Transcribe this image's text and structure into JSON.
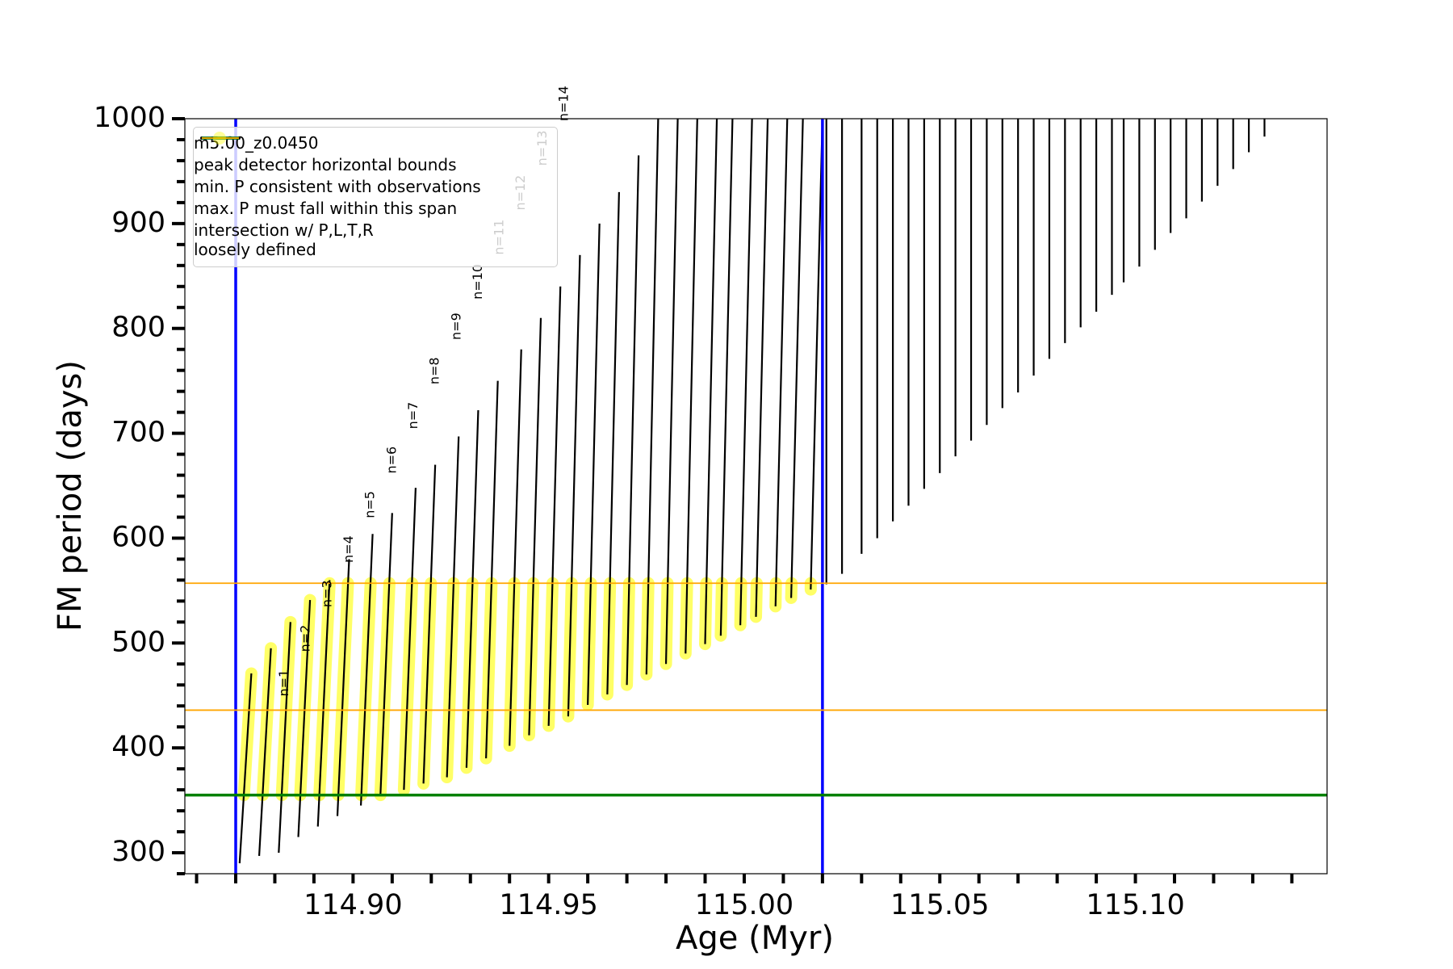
{
  "chart_data": {
    "type": "line",
    "xlabel": "Age (Myr)",
    "ylabel": "FM period (days)",
    "xlim": [
      114.857,
      115.149
    ],
    "ylim": [
      280,
      1000
    ],
    "xticks": [
      {
        "value": 114.9,
        "label": "114.90"
      },
      114.95,
      {
        "value": 115.0,
        "label": "115.00"
      },
      115.05,
      {
        "value": 115.1,
        "label": "115.10"
      }
    ],
    "xminorticks": [
      114.86,
      114.87,
      114.88,
      114.89,
      114.91,
      114.92,
      114.93,
      114.94,
      114.96,
      114.97,
      114.98,
      114.99,
      115.01,
      115.02,
      115.03,
      115.04,
      115.06,
      115.07,
      115.08,
      115.09,
      115.11,
      115.12,
      115.13,
      115.14
    ],
    "yticks": [
      300,
      400,
      500,
      600,
      700,
      800,
      900,
      1000
    ],
    "yminorticks": [
      280,
      320,
      340,
      360,
      380,
      420,
      440,
      460,
      480,
      520,
      540,
      560,
      580,
      620,
      640,
      660,
      680,
      720,
      740,
      760,
      780,
      820,
      840,
      860,
      880,
      920,
      940,
      960,
      980
    ],
    "annotations": [
      "n=1",
      "n=2",
      "n=3",
      "n=4",
      "n=5",
      "n=6",
      "n=7",
      "n=8",
      "n=9",
      "n=10",
      "n=11",
      "n=12",
      "n=13",
      "n=14"
    ],
    "series": [
      {
        "name": "m5.00_z0.0450",
        "type": "line",
        "color": "#000000",
        "x": [
          114.871,
          114.874,
          null,
          114.876,
          114.879,
          null,
          114.881,
          114.884,
          null,
          114.886,
          114.889,
          null,
          114.891,
          114.894,
          null,
          114.896,
          114.899,
          null,
          114.902,
          114.905,
          null,
          114.907,
          114.91,
          null,
          114.913,
          114.916,
          null,
          114.918,
          114.921,
          null,
          114.924,
          114.927,
          null,
          114.929,
          114.932,
          null,
          114.934,
          114.937,
          null,
          114.94,
          114.943,
          null,
          114.945,
          114.948,
          null,
          114.95,
          114.953,
          null,
          114.955,
          114.958,
          null,
          114.96,
          114.963,
          null,
          114.965,
          114.968,
          null,
          114.97,
          114.973,
          null,
          114.975,
          114.978,
          null,
          114.98,
          114.983,
          null,
          114.985,
          114.988,
          null,
          114.99,
          114.993,
          null,
          114.994,
          114.997,
          null,
          114.999,
          115.002,
          null,
          115.003,
          115.006,
          null,
          115.008,
          115.011,
          null,
          115.012,
          115.015,
          null,
          115.017,
          115.02,
          null,
          115.021,
          115.021,
          null,
          115.025,
          115.025,
          null,
          115.03,
          115.03,
          null,
          115.034,
          115.034,
          null,
          115.038,
          115.038,
          null,
          115.042,
          115.042,
          null,
          115.046,
          115.046,
          null,
          115.05,
          115.05,
          null,
          115.054,
          115.054,
          null,
          115.058,
          115.058,
          null,
          115.062,
          115.062,
          null,
          115.066,
          115.066,
          null,
          115.07,
          115.07,
          null,
          115.074,
          115.074,
          null,
          115.078,
          115.078,
          null,
          115.082,
          115.082,
          null,
          115.086,
          115.086,
          null,
          115.09,
          115.09,
          null,
          115.094,
          115.094,
          null,
          115.097,
          115.097,
          null,
          115.101,
          115.101,
          null,
          115.105,
          115.105,
          null,
          115.109,
          115.109,
          null,
          115.113,
          115.113,
          null,
          115.117,
          115.117,
          null,
          115.121,
          115.121,
          null,
          115.125,
          115.125,
          null,
          115.129,
          115.129,
          null,
          115.133,
          115.133
        ],
        "values": [
          290,
          471,
          null,
          297,
          495,
          null,
          300,
          520,
          null,
          315,
          541,
          null,
          325,
          560,
          null,
          335,
          580,
          null,
          345,
          604,
          null,
          355,
          624,
          null,
          360,
          648,
          null,
          366,
          670,
          null,
          372,
          697,
          null,
          381,
          722,
          null,
          390,
          750,
          null,
          402,
          780,
          null,
          412,
          810,
          null,
          421,
          840,
          null,
          430,
          870,
          null,
          441,
          900,
          null,
          451,
          930,
          null,
          460,
          965,
          null,
          470,
          1000,
          null,
          480,
          1000,
          null,
          490,
          1000,
          null,
          499,
          1000,
          null,
          507,
          1000,
          null,
          517,
          1000,
          null,
          525,
          1000,
          null,
          535,
          1000,
          null,
          543,
          1000,
          null,
          551,
          1000,
          null,
          556,
          1000,
          null,
          566,
          1000,
          null,
          585,
          1000,
          null,
          600,
          1000,
          null,
          616,
          1000,
          null,
          631,
          1000,
          null,
          647,
          1000,
          null,
          662,
          1000,
          null,
          678,
          1000,
          null,
          693,
          1000,
          null,
          708,
          1000,
          null,
          724,
          1000,
          null,
          739,
          1000,
          null,
          755,
          1000,
          null,
          771,
          1000,
          null,
          786,
          1000,
          null,
          801,
          1000,
          null,
          816,
          1000,
          null,
          832,
          1000,
          null,
          844,
          1000,
          null,
          859,
          1000,
          null,
          875,
          1000,
          null,
          891,
          1000,
          null,
          905,
          1000,
          null,
          921,
          1000,
          null,
          936,
          1000,
          null,
          952,
          1000,
          null,
          968,
          1000,
          null,
          983,
          1000
        ]
      },
      {
        "name": "peak detector horizontal bounds",
        "type": "vline",
        "color": "#0000ff",
        "x": [
          114.87,
          115.02
        ]
      },
      {
        "name": "min. P consistent with observations",
        "type": "hline",
        "color": "#008000",
        "values": [
          355
        ]
      },
      {
        "name": "max. P must fall within this span",
        "type": "hline",
        "color": "#ffa500",
        "values": [
          436,
          557
        ]
      },
      {
        "name": "intersection w/ P,L,T,R\nloosely defined",
        "type": "scatter",
        "color": "#ffff00",
        "x": [
          114.8721,
          114.874,
          null,
          114.8769,
          114.879,
          null,
          114.8818,
          114.884,
          null,
          114.8865,
          114.889,
          null,
          114.8914,
          114.894,
          null,
          114.8962,
          114.8987,
          null,
          114.9021,
          114.9045,
          null,
          114.907,
          114.9093,
          null,
          114.913,
          114.9151,
          null,
          114.918,
          114.9199,
          null,
          114.924,
          114.9257,
          null,
          114.929,
          114.9305,
          null,
          114.934,
          114.9354,
          null,
          114.94,
          114.9412,
          null,
          114.945,
          114.9461,
          null,
          114.95,
          114.951,
          null,
          114.955,
          114.9559,
          null,
          114.96,
          114.9608,
          null,
          114.965,
          114.9657,
          null,
          114.97,
          114.9706,
          null,
          114.975,
          114.9755,
          null,
          114.98,
          114.9804,
          null,
          114.985,
          114.9854,
          null,
          114.99,
          114.9903,
          null,
          114.994,
          114.9943,
          null,
          114.999,
          114.9992,
          null,
          115.003,
          115.0032,
          null,
          115.008,
          115.0081,
          null,
          115.012,
          115.0121,
          null,
          115.017,
          115.017
        ],
        "values": [
          355,
          471,
          null,
          355,
          495,
          null,
          355,
          520,
          null,
          355,
          541,
          null,
          355,
          557,
          null,
          355,
          557,
          null,
          355,
          557,
          null,
          355,
          557,
          null,
          360,
          557,
          null,
          366,
          557,
          null,
          372,
          557,
          null,
          381,
          557,
          null,
          390,
          557,
          null,
          402,
          557,
          null,
          412,
          557,
          null,
          421,
          557,
          null,
          430,
          557,
          null,
          441,
          557,
          null,
          451,
          557,
          null,
          460,
          557,
          null,
          470,
          557,
          null,
          480,
          557,
          null,
          490,
          557,
          null,
          499,
          557,
          null,
          507,
          557,
          null,
          517,
          557,
          null,
          525,
          557,
          null,
          535,
          557,
          null,
          543,
          557,
          null,
          551,
          557
        ]
      }
    ]
  }
}
